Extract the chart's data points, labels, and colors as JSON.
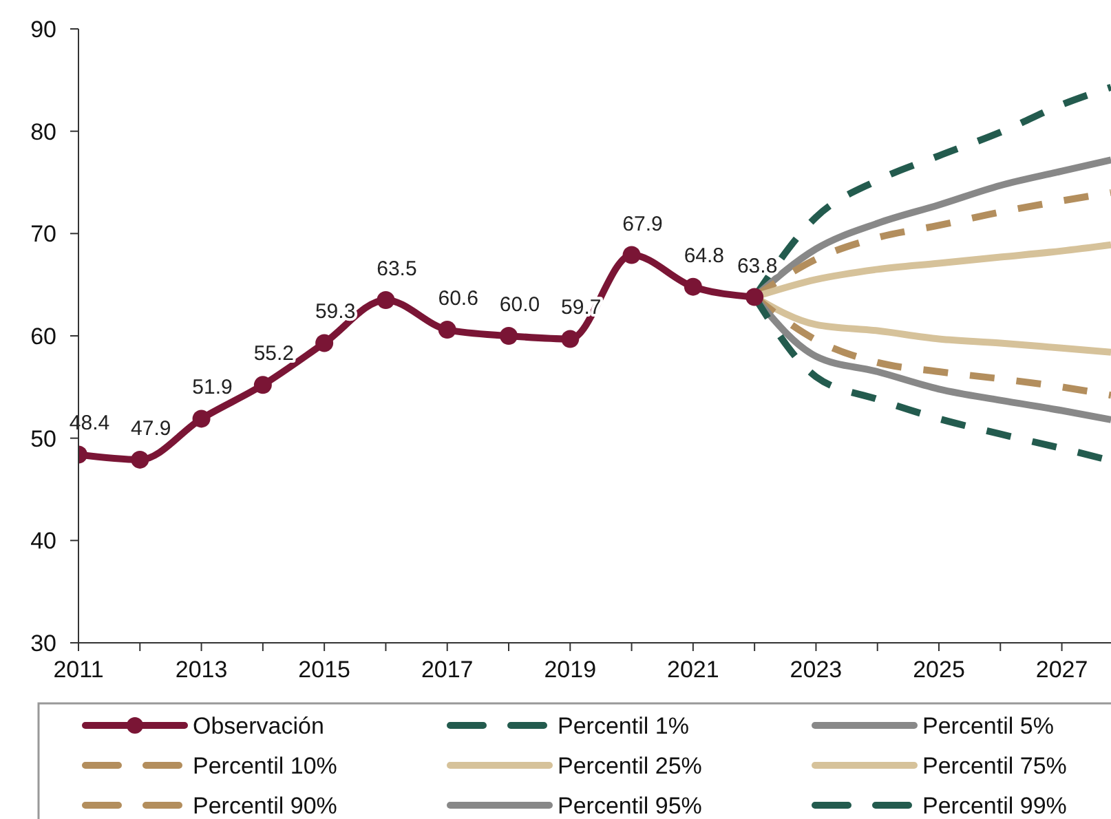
{
  "chart_data": {
    "type": "line",
    "xlim": [
      2011,
      2027.8
    ],
    "ylim": [
      30,
      90
    ],
    "yticks": [
      30,
      40,
      50,
      60,
      70,
      80,
      90
    ],
    "xticks": [
      2011,
      {
        "value": 2012,
        "label": null
      },
      2013,
      {
        "value": 2014,
        "label": null
      },
      2015,
      {
        "value": 2016,
        "label": null
      },
      2017,
      {
        "value": 2018,
        "label": null
      },
      2019,
      {
        "value": 2020,
        "label": null
      },
      2021,
      {
        "value": 2022,
        "label": null
      },
      2023,
      {
        "value": 2024,
        "label": null
      },
      2025,
      {
        "value": 2026,
        "label": null
      },
      2027
    ],
    "grid": false,
    "legend": "bottom",
    "series": [
      {
        "name": "Observación",
        "color": "#7a1535",
        "marker": "circle",
        "line_style": "solid",
        "x": [
          2011,
          2012,
          2013,
          2014,
          2015,
          2016,
          2017,
          2018,
          2019,
          2020,
          2021,
          2022
        ],
        "values": [
          48.4,
          47.9,
          51.9,
          55.2,
          59.3,
          63.5,
          60.6,
          60.0,
          59.7,
          67.9,
          64.8,
          63.8
        ],
        "value_labels": [
          "48.4",
          "47.9",
          "51.9",
          "55.2",
          "59.3",
          "63.5",
          "60.6",
          "60.0",
          "59.7",
          "67.9",
          "64.8",
          "63.8"
        ]
      },
      {
        "name": "Percentil 1%",
        "color": "#235b4e",
        "line_style": "dashed",
        "marker": "none",
        "x": [
          2022,
          2023,
          2024,
          2025,
          2026,
          2027,
          2027.8
        ],
        "values": [
          63.8,
          56.0,
          53.8,
          51.9,
          50.4,
          49.0,
          47.8
        ]
      },
      {
        "name": "Percentil 5%",
        "color": "#888888",
        "line_style": "solid",
        "marker": "none",
        "x": [
          2022,
          2023,
          2024,
          2025,
          2026,
          2027,
          2027.8
        ],
        "values": [
          63.8,
          58.0,
          56.5,
          54.8,
          53.7,
          52.7,
          51.8
        ]
      },
      {
        "name": "Percentil 10%",
        "color": "#b38e5d",
        "line_style": "dashed",
        "marker": "none",
        "x": [
          2022,
          2023,
          2024,
          2025,
          2026,
          2027,
          2027.8
        ],
        "values": [
          63.8,
          59.6,
          57.4,
          56.5,
          55.8,
          55.0,
          54.2
        ]
      },
      {
        "name": "Percentil 25%",
        "color": "#d6c29a",
        "line_style": "solid",
        "marker": "none",
        "x": [
          2022,
          2023,
          2024,
          2025,
          2026,
          2027,
          2027.8
        ],
        "values": [
          63.8,
          61.1,
          60.5,
          59.7,
          59.3,
          58.8,
          58.4
        ]
      },
      {
        "name": "Percentil 75%",
        "color": "#d6c29a",
        "line_style": "solid",
        "marker": "none",
        "x": [
          2022,
          2023,
          2024,
          2025,
          2026,
          2027,
          2027.8
        ],
        "values": [
          63.8,
          65.5,
          66.5,
          67.1,
          67.7,
          68.3,
          68.9
        ]
      },
      {
        "name": "Percentil 90%",
        "color": "#b38e5d",
        "line_style": "dashed",
        "marker": "none",
        "x": [
          2022,
          2023,
          2024,
          2025,
          2026,
          2027,
          2027.8
        ],
        "values": [
          63.8,
          67.5,
          69.6,
          70.8,
          72.1,
          73.2,
          74.0
        ]
      },
      {
        "name": "Percentil 95%",
        "color": "#888888",
        "line_style": "solid",
        "marker": "none",
        "x": [
          2022,
          2023,
          2024,
          2025,
          2026,
          2027,
          2027.8
        ],
        "values": [
          63.8,
          68.5,
          71.0,
          72.8,
          74.7,
          76.1,
          77.2
        ]
      },
      {
        "name": "Percentil 99%",
        "color": "#235b4e",
        "line_style": "dashed",
        "marker": "none",
        "x": [
          2022,
          2023,
          2024,
          2025,
          2026,
          2027,
          2027.8
        ],
        "values": [
          63.8,
          71.6,
          75.2,
          77.6,
          79.9,
          82.6,
          84.3
        ]
      }
    ]
  }
}
